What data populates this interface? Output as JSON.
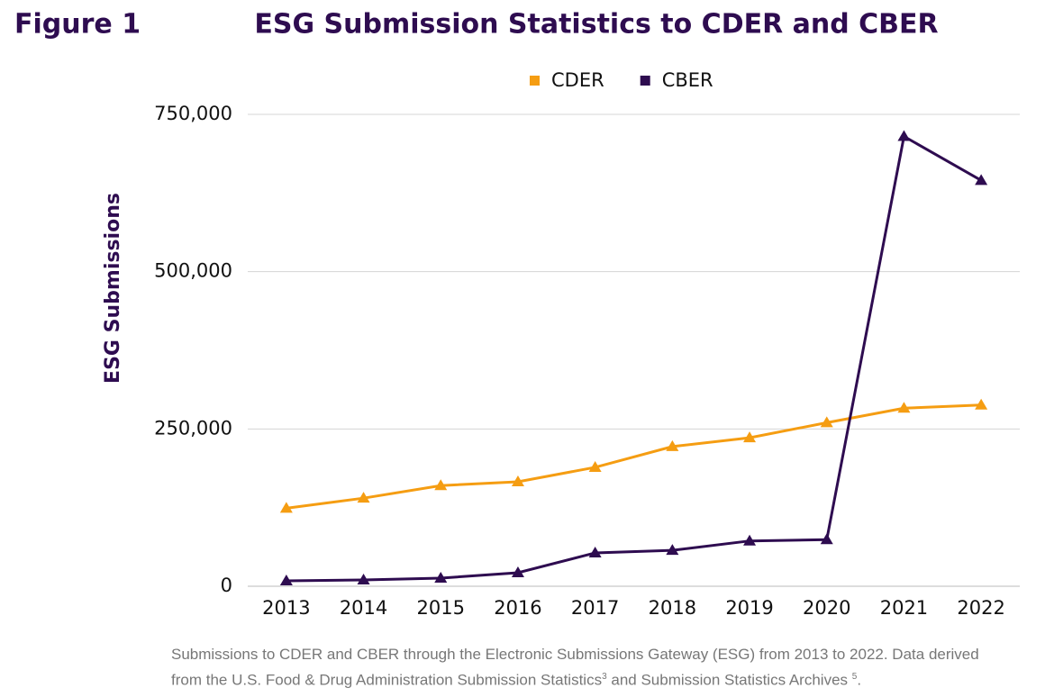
{
  "figure_label": "Figure 1",
  "chart_data": {
    "type": "line",
    "title": "ESG Submission Statistics to CDER and CBER",
    "y_label": "ESG Submissions",
    "categories": [
      "2013",
      "2014",
      "2015",
      "2016",
      "2017",
      "2018",
      "2019",
      "2020",
      "2021",
      "2022"
    ],
    "series": [
      {
        "name": "CDER",
        "color": "#f59d12",
        "values": [
          124000,
          140000,
          160000,
          166000,
          189000,
          222000,
          236000,
          260000,
          283000,
          288000
        ]
      },
      {
        "name": "CBER",
        "color": "#2e0c50",
        "values": [
          8600,
          10000,
          12900,
          21500,
          53000,
          57000,
          72000,
          74000,
          715000,
          645000
        ]
      }
    ],
    "ylim": [
      0,
      750000
    ],
    "yticks": [
      0,
      {
        "value": 250000,
        "label": "250,000"
      },
      {
        "value": 500000,
        "label": "500,000"
      },
      {
        "value": 750000,
        "label": "750,000"
      }
    ],
    "grid": true,
    "legend": "top"
  },
  "caption": [
    "Submissions to CDER and CBER through the Electronic Submissions Gateway (ESG) from 2013 to 2022. Data derived from the U.S. Food & Drug Administration Submission Statistics",
    "3",
    " and Submission Statistics Archives ",
    "5",
    "."
  ]
}
